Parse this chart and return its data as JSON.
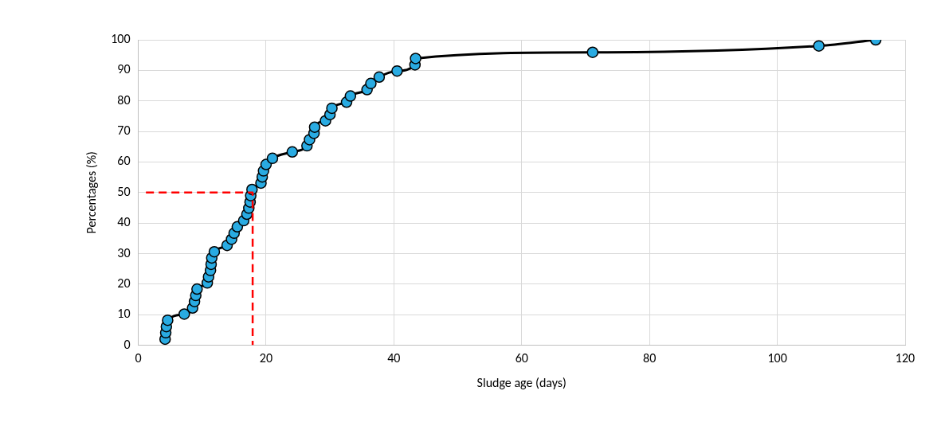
{
  "chart_data": {
    "type": "scatter",
    "xlabel": "Sludge age (days)",
    "ylabel": "Percentages (%)",
    "xlim": [
      0,
      120
    ],
    "xticks": [
      0,
      20,
      40,
      60,
      80,
      100,
      120
    ],
    "ylim": [
      0,
      100
    ],
    "yticks": [
      0,
      10,
      20,
      30,
      40,
      50,
      60,
      70,
      80,
      90,
      100
    ],
    "grid": true,
    "legend": false,
    "series": [
      {
        "type": "line",
        "color": "#ff0000",
        "line_style": "dashed",
        "marker": "none",
        "x": [
          1.2,
          17.9,
          17.9
        ],
        "values": [
          50,
          50,
          0
        ]
      },
      {
        "type": "line",
        "color": "#29abe2",
        "marker": "circle",
        "line_style": "solid",
        "x": [
          4.2,
          4.3,
          4.4,
          4.6,
          7.2,
          8.5,
          8.8,
          9.0,
          9.2,
          10.8,
          11.0,
          11.3,
          11.4,
          11.5,
          11.9,
          13.9,
          14.6,
          15.0,
          15.5,
          16.5,
          17.0,
          17.3,
          17.5,
          17.6,
          17.8,
          19.2,
          19.4,
          19.6,
          20.0,
          21.0,
          24.1,
          26.4,
          26.8,
          27.5,
          27.6,
          29.3,
          30.0,
          30.3,
          32.6,
          33.2,
          35.8,
          36.4,
          37.7,
          40.5,
          43.3,
          43.4,
          71.1,
          106.5,
          115.4
        ],
        "values": [
          2.0,
          4.1,
          6.1,
          8.2,
          10.2,
          12.2,
          14.3,
          16.3,
          18.4,
          20.4,
          22.4,
          24.5,
          26.5,
          28.6,
          30.6,
          32.7,
          34.7,
          36.7,
          38.8,
          40.8,
          42.9,
          44.9,
          46.9,
          49.0,
          51.0,
          53.1,
          55.1,
          57.1,
          59.2,
          61.2,
          63.3,
          65.3,
          67.3,
          69.4,
          71.4,
          73.5,
          75.5,
          77.6,
          79.6,
          81.6,
          83.7,
          85.7,
          87.8,
          89.8,
          91.8,
          93.9,
          95.9,
          98.0,
          100
        ]
      }
    ]
  }
}
